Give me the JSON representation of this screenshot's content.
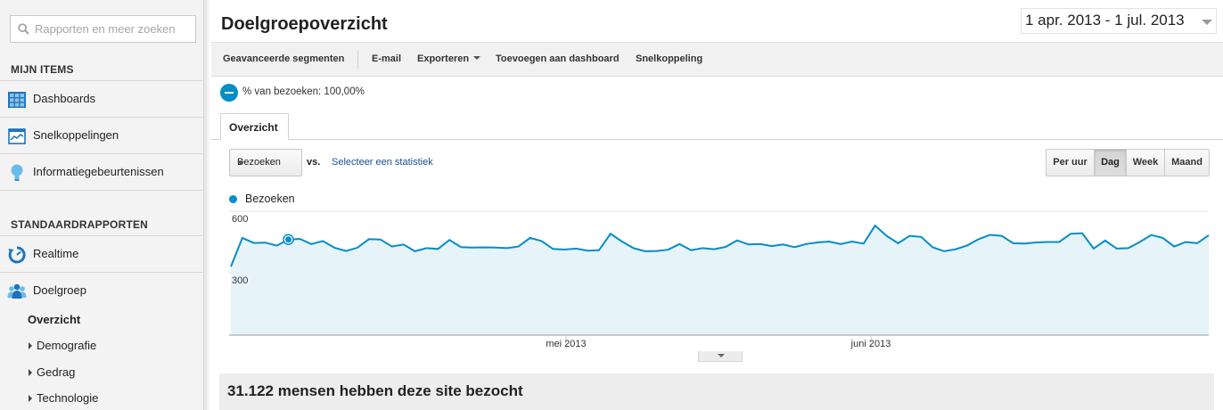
{
  "sidebar": {
    "search_placeholder": "Rapporten en meer zoeken",
    "my_items_heading": "MIJN ITEMS",
    "my_items": [
      {
        "label": "Dashboards",
        "icon": "dashboard-grid-icon"
      },
      {
        "label": "Snelkoppelingen",
        "icon": "shortcut-chart-icon"
      },
      {
        "label": "Informatiegebeurtenissen",
        "icon": "lightbulb-icon"
      }
    ],
    "standard_reports_heading": "STANDAARDRAPPORTEN",
    "reports": [
      {
        "label": "Realtime",
        "icon": "realtime-clock-icon"
      },
      {
        "label": "Doelgroep",
        "icon": "audience-people-icon"
      }
    ],
    "sub_items": [
      {
        "label": "Overzicht",
        "active": true
      },
      {
        "label": "Demografie"
      },
      {
        "label": "Gedrag"
      },
      {
        "label": "Technologie"
      }
    ]
  },
  "header": {
    "title": "Doelgroepoverzicht",
    "date_range": "1 apr. 2013 - 1 jul. 2013"
  },
  "toolbar": {
    "advanced_segments": "Geavanceerde segmenten",
    "email": "E-mail",
    "export": "Exporteren",
    "add_to_dashboard": "Toevoegen aan dashboard",
    "shortcut": "Snelkoppeling"
  },
  "segment": {
    "label": "% van bezoeken: 100,00%"
  },
  "tabs": [
    {
      "label": "Overzicht"
    }
  ],
  "controls": {
    "metric": "Bezoeken",
    "vs": "vs.",
    "select_metric": "Selecteer een statistiek",
    "periods": [
      {
        "label": "Per uur"
      },
      {
        "label": "Dag",
        "active": true
      },
      {
        "label": "Week"
      },
      {
        "label": "Maand"
      }
    ]
  },
  "colors": {
    "series": "#058dc7",
    "fill": "#e6f3f9"
  },
  "chart_data": {
    "type": "area",
    "series": [
      {
        "name": "Bezoeken",
        "values": [
          330,
          470,
          445,
          447,
          432,
          462,
          465,
          440,
          455,
          422,
          406,
          422,
          464,
          462,
          428,
          438,
          405,
          420,
          416,
          460,
          425,
          423,
          424,
          423,
          420,
          428,
          470,
          455,
          416,
          413,
          418,
          408,
          410,
          490,
          452,
          420,
          405,
          406,
          412,
          440,
          410,
          420,
          415,
          426,
          458,
          438,
          440,
          430,
          438,
          425,
          440,
          448,
          452,
          440,
          452,
          442,
          530,
          480,
          444,
          480,
          475,
          424,
          405,
          415,
          433,
          464,
          485,
          480,
          444,
          442,
          448,
          450,
          450,
          490,
          493,
          418,
          457,
          418,
          420,
          450,
          484,
          470,
          428,
          450,
          444,
          483
        ]
      }
    ],
    "x_ticks": [
      "mei 2013",
      "juni 2013"
    ],
    "y_ticks": [
      600,
      300
    ],
    "ylim": [
      0,
      600
    ],
    "legend": "top-left"
  },
  "summary": {
    "text": "31.122 mensen hebben deze site bezocht"
  }
}
